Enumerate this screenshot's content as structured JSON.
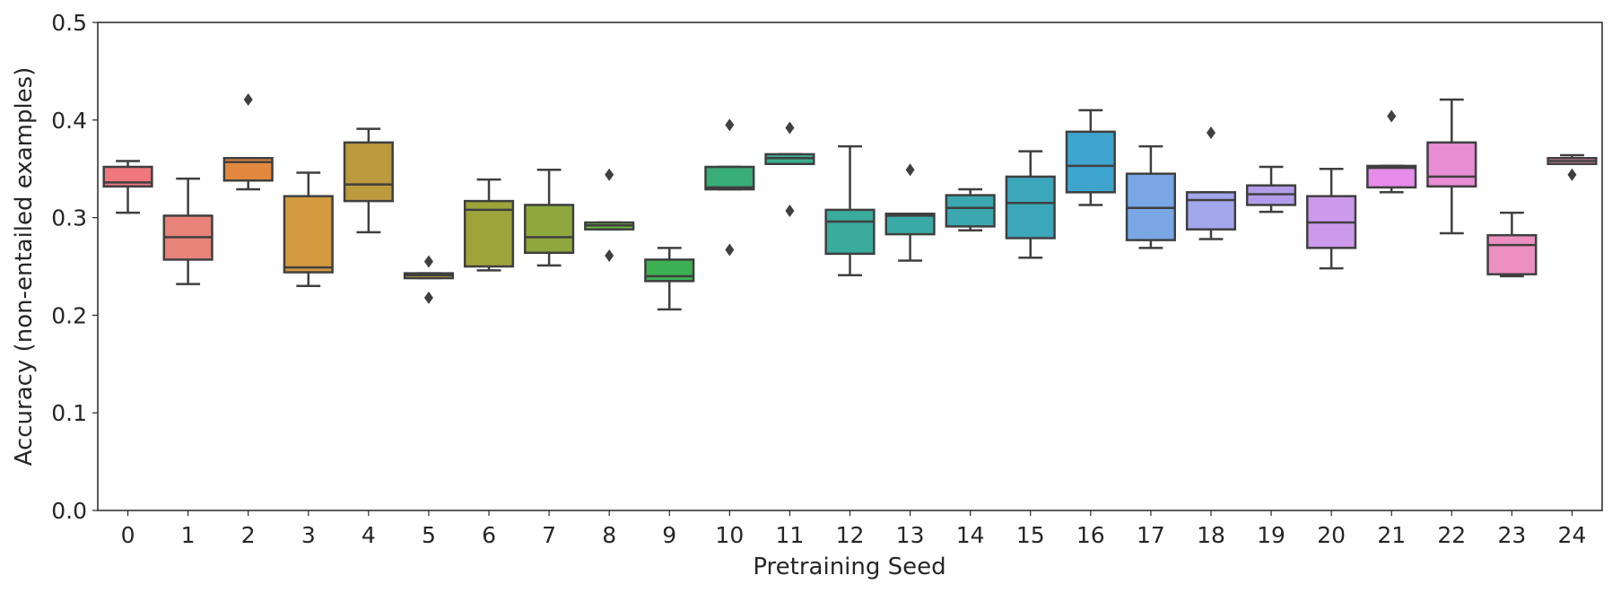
{
  "chart_data": {
    "type": "box",
    "title": "",
    "xlabel": "Pretraining Seed",
    "ylabel": "Accuracy (non-entailed examples)",
    "ylim": [
      0.0,
      0.5
    ],
    "yticks": [
      0.0,
      0.1,
      0.2,
      0.3,
      0.4,
      0.5
    ],
    "ytick_labels": [
      "0.0",
      "0.1",
      "0.2",
      "0.3",
      "0.4",
      "0.5"
    ],
    "grid": false,
    "categories": [
      "0",
      "1",
      "2",
      "3",
      "4",
      "5",
      "6",
      "7",
      "8",
      "9",
      "10",
      "11",
      "12",
      "13",
      "14",
      "15",
      "16",
      "17",
      "18",
      "19",
      "20",
      "21",
      "22",
      "23",
      "24"
    ],
    "boxes": [
      {
        "seed": "0",
        "color": "#f0777d",
        "whisker_low": 0.305,
        "q1": 0.332,
        "median": 0.336,
        "q3": 0.352,
        "whisker_high": 0.358,
        "outliers": []
      },
      {
        "seed": "1",
        "color": "#e8837a",
        "whisker_low": 0.232,
        "q1": 0.257,
        "median": 0.28,
        "q3": 0.302,
        "whisker_high": 0.34,
        "outliers": []
      },
      {
        "seed": "2",
        "color": "#e2883e",
        "whisker_low": 0.329,
        "q1": 0.338,
        "median": 0.357,
        "q3": 0.361,
        "whisker_high": 0.361,
        "outliers": [
          0.421
        ]
      },
      {
        "seed": "3",
        "color": "#d39a3f",
        "whisker_low": 0.23,
        "q1": 0.244,
        "median": 0.249,
        "q3": 0.322,
        "whisker_high": 0.346,
        "outliers": []
      },
      {
        "seed": "4",
        "color": "#bc9a3e",
        "whisker_low": 0.285,
        "q1": 0.317,
        "median": 0.334,
        "q3": 0.377,
        "whisker_high": 0.391,
        "outliers": []
      },
      {
        "seed": "5",
        "color": "#b9a53b",
        "whisker_low": 0.238,
        "q1": 0.238,
        "median": 0.241,
        "q3": 0.243,
        "whisker_high": 0.243,
        "outliers": [
          0.255,
          0.218
        ]
      },
      {
        "seed": "6",
        "color": "#9da43a",
        "whisker_low": 0.246,
        "q1": 0.25,
        "median": 0.308,
        "q3": 0.317,
        "whisker_high": 0.339,
        "outliers": []
      },
      {
        "seed": "7",
        "color": "#8fa83e",
        "whisker_low": 0.251,
        "q1": 0.264,
        "median": 0.28,
        "q3": 0.313,
        "whisker_high": 0.349,
        "outliers": []
      },
      {
        "seed": "8",
        "color": "#6cb53d",
        "whisker_low": 0.288,
        "q1": 0.288,
        "median": 0.292,
        "q3": 0.295,
        "whisker_high": 0.295,
        "outliers": [
          0.344,
          0.261
        ]
      },
      {
        "seed": "9",
        "color": "#3db052",
        "whisker_low": 0.206,
        "q1": 0.235,
        "median": 0.24,
        "q3": 0.257,
        "whisker_high": 0.269,
        "outliers": []
      },
      {
        "seed": "10",
        "color": "#39ad78",
        "whisker_low": 0.329,
        "q1": 0.329,
        "median": 0.331,
        "q3": 0.352,
        "whisker_high": 0.352,
        "outliers": [
          0.395,
          0.267
        ]
      },
      {
        "seed": "11",
        "color": "#39ad8e",
        "whisker_low": 0.355,
        "q1": 0.355,
        "median": 0.361,
        "q3": 0.365,
        "whisker_high": 0.365,
        "outliers": [
          0.392,
          0.307
        ]
      },
      {
        "seed": "12",
        "color": "#3aab9c",
        "whisker_low": 0.241,
        "q1": 0.263,
        "median": 0.296,
        "q3": 0.308,
        "whisker_high": 0.373,
        "outliers": []
      },
      {
        "seed": "13",
        "color": "#3aaaa6",
        "whisker_low": 0.256,
        "q1": 0.283,
        "median": 0.302,
        "q3": 0.304,
        "whisker_high": 0.304,
        "outliers": [
          0.349
        ]
      },
      {
        "seed": "14",
        "color": "#3ba8af",
        "whisker_low": 0.287,
        "q1": 0.291,
        "median": 0.31,
        "q3": 0.323,
        "whisker_high": 0.329,
        "outliers": []
      },
      {
        "seed": "15",
        "color": "#3ca6bb",
        "whisker_low": 0.259,
        "q1": 0.279,
        "median": 0.315,
        "q3": 0.342,
        "whisker_high": 0.368,
        "outliers": []
      },
      {
        "seed": "16",
        "color": "#3ea5cf",
        "whisker_low": 0.313,
        "q1": 0.326,
        "median": 0.353,
        "q3": 0.388,
        "whisker_high": 0.41,
        "outliers": []
      },
      {
        "seed": "17",
        "color": "#7aa8e6",
        "whisker_low": 0.269,
        "q1": 0.277,
        "median": 0.31,
        "q3": 0.345,
        "whisker_high": 0.373,
        "outliers": []
      },
      {
        "seed": "18",
        "color": "#a3a7ec",
        "whisker_low": 0.278,
        "q1": 0.288,
        "median": 0.318,
        "q3": 0.326,
        "whisker_high": 0.326,
        "outliers": [
          0.387
        ]
      },
      {
        "seed": "19",
        "color": "#b49ceb",
        "whisker_low": 0.306,
        "q1": 0.313,
        "median": 0.324,
        "q3": 0.333,
        "whisker_high": 0.352,
        "outliers": []
      },
      {
        "seed": "20",
        "color": "#cd9aeb",
        "whisker_low": 0.248,
        "q1": 0.269,
        "median": 0.295,
        "q3": 0.322,
        "whisker_high": 0.35,
        "outliers": []
      },
      {
        "seed": "21",
        "color": "#e58de8",
        "whisker_low": 0.326,
        "q1": 0.331,
        "median": 0.351,
        "q3": 0.353,
        "whisker_high": 0.353,
        "outliers": [
          0.404
        ]
      },
      {
        "seed": "22",
        "color": "#e88dd3",
        "whisker_low": 0.284,
        "q1": 0.332,
        "median": 0.342,
        "q3": 0.377,
        "whisker_high": 0.421,
        "outliers": []
      },
      {
        "seed": "23",
        "color": "#ec8fc1",
        "whisker_low": 0.24,
        "q1": 0.242,
        "median": 0.272,
        "q3": 0.282,
        "whisker_high": 0.305,
        "outliers": []
      },
      {
        "seed": "24",
        "color": "#ef8fb4",
        "whisker_low": 0.355,
        "q1": 0.355,
        "median": 0.358,
        "q3": 0.361,
        "whisker_high": 0.364,
        "outliers": [
          0.344
        ]
      }
    ],
    "line_color": "#3f3f3f"
  }
}
